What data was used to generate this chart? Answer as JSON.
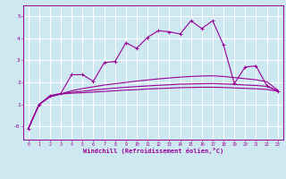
{
  "xlabel": "Windchill (Refroidissement éolien,°C)",
  "bg_color": "#cde8f0",
  "line_color": "#990099",
  "grid_color": "#ffffff",
  "x_ticks": [
    0,
    1,
    2,
    3,
    4,
    5,
    6,
    7,
    8,
    9,
    10,
    11,
    12,
    13,
    14,
    15,
    16,
    17,
    18,
    19,
    20,
    21,
    22,
    23
  ],
  "y_ticks": [
    0,
    1,
    2,
    3,
    4,
    5
  ],
  "y_tick_labels": [
    "-0",
    "1",
    "2",
    "3",
    "4",
    "5"
  ],
  "ylim": [
    -0.6,
    5.5
  ],
  "xlim": [
    -0.5,
    23.5
  ],
  "line1_x": [
    0,
    1,
    2,
    3,
    4,
    5,
    6,
    7,
    8,
    9,
    10,
    11,
    12,
    13,
    14,
    15,
    16,
    17,
    18,
    19,
    20,
    21,
    22,
    23
  ],
  "line1_y": [
    -0.1,
    1.0,
    1.4,
    1.5,
    2.35,
    2.35,
    2.05,
    2.9,
    2.95,
    3.8,
    3.55,
    4.05,
    4.35,
    4.3,
    4.2,
    4.8,
    4.45,
    4.8,
    3.7,
    1.95,
    2.7,
    2.75,
    1.85,
    1.6
  ],
  "line2_x": [
    0,
    1,
    2,
    3,
    4,
    5,
    6,
    7,
    8,
    9,
    10,
    11,
    12,
    13,
    14,
    15,
    16,
    17,
    18,
    19,
    20,
    21,
    22,
    23
  ],
  "line2_y": [
    -0.1,
    1.0,
    1.35,
    1.48,
    1.62,
    1.72,
    1.8,
    1.88,
    1.94,
    2.0,
    2.06,
    2.11,
    2.16,
    2.2,
    2.24,
    2.27,
    2.29,
    2.3,
    2.27,
    2.22,
    2.17,
    2.12,
    2.03,
    1.65
  ],
  "line3_x": [
    0,
    1,
    2,
    3,
    4,
    5,
    6,
    7,
    8,
    9,
    10,
    11,
    12,
    13,
    14,
    15,
    16,
    17,
    18,
    19,
    20,
    21,
    22,
    23
  ],
  "line3_y": [
    -0.1,
    1.0,
    1.35,
    1.48,
    1.55,
    1.6,
    1.65,
    1.7,
    1.74,
    1.78,
    1.81,
    1.84,
    1.87,
    1.89,
    1.92,
    1.93,
    1.94,
    1.95,
    1.93,
    1.91,
    1.88,
    1.86,
    1.82,
    1.62
  ],
  "line4_x": [
    0,
    1,
    2,
    3,
    4,
    5,
    6,
    7,
    8,
    9,
    10,
    11,
    12,
    13,
    14,
    15,
    16,
    17,
    18,
    19,
    20,
    21,
    22,
    23
  ],
  "line4_y": [
    -0.1,
    1.0,
    1.35,
    1.47,
    1.51,
    1.53,
    1.56,
    1.59,
    1.62,
    1.65,
    1.67,
    1.7,
    1.72,
    1.74,
    1.76,
    1.77,
    1.78,
    1.78,
    1.77,
    1.75,
    1.73,
    1.71,
    1.68,
    1.6
  ]
}
